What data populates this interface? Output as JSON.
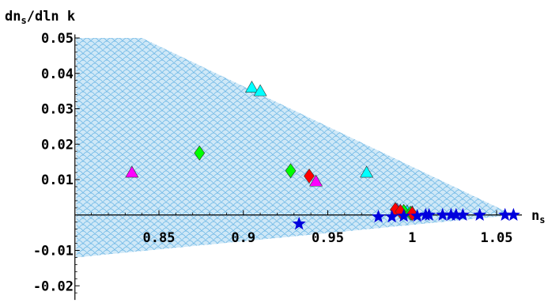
{
  "chart_data": {
    "type": "scatter",
    "xlabel": "n_s",
    "ylabel": "dn_s/dln k",
    "xlim": [
      0.8,
      1.065
    ],
    "ylim": [
      -0.024,
      0.051
    ],
    "x_ticks": [
      0.85,
      0.9,
      0.95,
      1,
      1.05
    ],
    "x_tick_labels": [
      "0.85",
      "0.9",
      "0.95",
      "1",
      "1.05"
    ],
    "y_ticks": [
      -0.02,
      -0.01,
      0.01,
      0.02,
      0.03,
      0.04,
      0.05
    ],
    "y_tick_labels": [
      "-0.02",
      "-0.01",
      "0.01",
      "0.02",
      "0.03",
      "0.04",
      "0.05"
    ],
    "allowed_region": [
      [
        0.801,
        0.05
      ],
      [
        0.84,
        0.05
      ],
      [
        1.06,
        0.0
      ],
      [
        0.801,
        -0.012
      ]
    ],
    "colors": {
      "region_fill": "#cfe8f7",
      "region_pattern": "#6fb8e6",
      "cyan": "#00ffff",
      "magenta": "#ff00ff",
      "green": "#00ff00",
      "red": "#ff0000",
      "blue": "#0000dd"
    },
    "series": [
      {
        "marker": "triangle",
        "color": "cyan",
        "points": [
          [
            0.905,
            0.036
          ],
          [
            0.91,
            0.035
          ],
          [
            0.973,
            0.012
          ],
          [
            0.997,
            0.001
          ],
          [
            1.0,
            0.0008
          ]
        ]
      },
      {
        "marker": "triangle",
        "color": "magenta",
        "points": [
          [
            0.834,
            0.012
          ],
          [
            0.943,
            0.0095
          ],
          [
            0.991,
            0.0015
          ]
        ]
      },
      {
        "marker": "diamond",
        "color": "green",
        "points": [
          [
            0.874,
            0.0175
          ],
          [
            0.928,
            0.0125
          ],
          [
            0.995,
            0.001
          ],
          [
            0.999,
            0.0005
          ]
        ]
      },
      {
        "marker": "diamond",
        "color": "red",
        "points": [
          [
            0.939,
            0.011
          ],
          [
            0.99,
            0.0015
          ],
          [
            0.993,
            0.001
          ],
          [
            1.0,
            0.0004
          ]
        ]
      },
      {
        "marker": "star",
        "color": "blue",
        "points": [
          [
            0.933,
            -0.0025
          ],
          [
            0.98,
            -0.0005
          ],
          [
            0.988,
            -0.0005
          ],
          [
            0.995,
            -0.0003
          ],
          [
            1.003,
            -0.0003
          ],
          [
            1.008,
            0.0
          ],
          [
            1.01,
            0.0
          ],
          [
            1.018,
            0.0
          ],
          [
            1.023,
            0.0
          ],
          [
            1.026,
            0.0
          ],
          [
            1.03,
            0.0
          ],
          [
            1.04,
            0.0
          ],
          [
            1.055,
            0.0
          ],
          [
            1.06,
            0.0
          ]
        ]
      }
    ]
  }
}
